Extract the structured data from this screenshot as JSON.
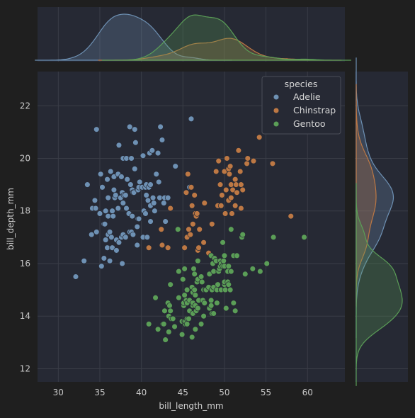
{
  "chart_data": {
    "type": "scatter",
    "subtype": "jointplot",
    "xlabel": "bill_length_mm",
    "ylabel": "bill_depth_mm",
    "xlim": [
      27.5,
      64.5
    ],
    "ylim": [
      11.5,
      23.3
    ],
    "xticks": [
      30,
      35,
      40,
      45,
      50,
      55,
      60
    ],
    "yticks": [
      12,
      14,
      16,
      18,
      20,
      22
    ],
    "grid": true,
    "legend": {
      "title": "species",
      "placement": "top-right"
    },
    "marginals": {
      "top": "kde of bill_length_mm by species",
      "right": "kde of bill_depth_mm by species"
    },
    "series": [
      {
        "name": "Adelie",
        "color": "#6e91b4",
        "points": [
          [
            32.1,
            15.5
          ],
          [
            33.1,
            16.1
          ],
          [
            33.5,
            19.0
          ],
          [
            34.0,
            17.1
          ],
          [
            34.1,
            18.1
          ],
          [
            34.4,
            18.4
          ],
          [
            34.5,
            18.1
          ],
          [
            34.6,
            17.2
          ],
          [
            34.6,
            21.1
          ],
          [
            35.0,
            17.9
          ],
          [
            35.1,
            19.4
          ],
          [
            35.2,
            15.9
          ],
          [
            35.3,
            18.9
          ],
          [
            35.5,
            17.5
          ],
          [
            35.5,
            16.2
          ],
          [
            35.6,
            17.5
          ],
          [
            35.7,
            16.9
          ],
          [
            35.7,
            18.0
          ],
          [
            35.9,
            16.6
          ],
          [
            35.9,
            19.2
          ],
          [
            36.0,
            17.1
          ],
          [
            36.0,
            17.8
          ],
          [
            36.0,
            18.5
          ],
          [
            36.2,
            16.1
          ],
          [
            36.2,
            17.2
          ],
          [
            36.3,
            19.5
          ],
          [
            36.4,
            17.0
          ],
          [
            36.5,
            16.6
          ],
          [
            36.5,
            18.0
          ],
          [
            36.6,
            17.8
          ],
          [
            36.7,
            18.8
          ],
          [
            36.7,
            19.3
          ],
          [
            36.8,
            18.5
          ],
          [
            36.9,
            18.6
          ],
          [
            37.0,
            16.5
          ],
          [
            37.0,
            16.9
          ],
          [
            37.2,
            18.1
          ],
          [
            37.2,
            19.4
          ],
          [
            37.3,
            16.8
          ],
          [
            37.3,
            20.5
          ],
          [
            37.5,
            18.5
          ],
          [
            37.6,
            17.0
          ],
          [
            37.6,
            19.3
          ],
          [
            37.7,
            18.7
          ],
          [
            37.7,
            16.0
          ],
          [
            37.8,
            17.1
          ],
          [
            37.8,
            18.3
          ],
          [
            37.8,
            20.0
          ],
          [
            37.9,
            18.6
          ],
          [
            38.1,
            17.0
          ],
          [
            38.1,
            18.6
          ],
          [
            38.2,
            18.1
          ],
          [
            38.2,
            20.0
          ],
          [
            38.3,
            19.2
          ],
          [
            38.5,
            17.9
          ],
          [
            38.6,
            17.2
          ],
          [
            38.6,
            21.2
          ],
          [
            38.7,
            19.0
          ],
          [
            38.8,
            17.2
          ],
          [
            38.8,
            20.0
          ],
          [
            38.9,
            17.8
          ],
          [
            38.9,
            18.8
          ],
          [
            39.0,
            17.1
          ],
          [
            39.0,
            18.7
          ],
          [
            39.1,
            18.7
          ],
          [
            39.2,
            19.6
          ],
          [
            39.2,
            21.1
          ],
          [
            39.3,
            20.6
          ],
          [
            39.5,
            16.7
          ],
          [
            39.5,
            17.4
          ],
          [
            39.6,
            17.7
          ],
          [
            39.6,
            18.8
          ],
          [
            39.7,
            17.7
          ],
          [
            39.7,
            18.9
          ],
          [
            39.8,
            19.1
          ],
          [
            40.1,
            18.9
          ],
          [
            40.2,
            17.0
          ],
          [
            40.2,
            20.1
          ],
          [
            40.3,
            18.0
          ],
          [
            40.5,
            17.9
          ],
          [
            40.5,
            18.9
          ],
          [
            40.6,
            18.6
          ],
          [
            40.6,
            19.0
          ],
          [
            40.7,
            17.0
          ],
          [
            40.8,
            18.4
          ],
          [
            40.9,
            16.6
          ],
          [
            40.9,
            18.9
          ],
          [
            41.0,
            20.2
          ],
          [
            41.1,
            17.6
          ],
          [
            41.1,
            18.2
          ],
          [
            41.1,
            19.0
          ],
          [
            41.3,
            20.3
          ],
          [
            41.4,
            18.5
          ],
          [
            41.5,
            18.3
          ],
          [
            41.6,
            18.0
          ],
          [
            41.8,
            19.4
          ],
          [
            42.0,
            20.2
          ],
          [
            42.1,
            19.1
          ],
          [
            42.2,
            18.5
          ],
          [
            42.3,
            21.2
          ],
          [
            42.5,
            20.7
          ],
          [
            42.7,
            18.3
          ],
          [
            42.8,
            18.5
          ],
          [
            42.9,
            17.6
          ],
          [
            43.2,
            18.5
          ],
          [
            44.1,
            19.7
          ],
          [
            45.8,
            18.9
          ],
          [
            46.0,
            21.5
          ]
        ]
      },
      {
        "name": "Chinstrap",
        "color": "#bd7844",
        "points": [
          [
            40.9,
            16.6
          ],
          [
            42.4,
            17.3
          ],
          [
            42.5,
            16.7
          ],
          [
            43.2,
            16.6
          ],
          [
            43.5,
            18.1
          ],
          [
            45.2,
            16.6
          ],
          [
            45.4,
            18.7
          ],
          [
            45.5,
            17.0
          ],
          [
            45.6,
            19.4
          ],
          [
            45.7,
            17.3
          ],
          [
            45.9,
            17.1
          ],
          [
            46.0,
            18.9
          ],
          [
            46.1,
            18.2
          ],
          [
            46.2,
            17.5
          ],
          [
            46.4,
            18.6
          ],
          [
            46.5,
            17.9
          ],
          [
            46.6,
            17.8
          ],
          [
            46.7,
            17.9
          ],
          [
            46.8,
            16.5
          ],
          [
            46.9,
            16.6
          ],
          [
            47.0,
            17.3
          ],
          [
            47.5,
            16.8
          ],
          [
            47.6,
            18.3
          ],
          [
            48.1,
            16.4
          ],
          [
            48.5,
            17.5
          ],
          [
            49.0,
            19.5
          ],
          [
            49.2,
            18.2
          ],
          [
            49.3,
            19.9
          ],
          [
            49.5,
            19.0
          ],
          [
            49.6,
            18.2
          ],
          [
            49.7,
            18.6
          ],
          [
            50.0,
            19.5
          ],
          [
            50.1,
            17.9
          ],
          [
            50.2,
            18.8
          ],
          [
            50.3,
            20.0
          ],
          [
            50.5,
            18.4
          ],
          [
            50.5,
            19.6
          ],
          [
            50.6,
            19.4
          ],
          [
            50.7,
            19.7
          ],
          [
            50.8,
            18.5
          ],
          [
            50.8,
            19.0
          ],
          [
            50.9,
            17.9
          ],
          [
            51.0,
            18.8
          ],
          [
            51.3,
            18.2
          ],
          [
            51.3,
            19.2
          ],
          [
            51.4,
            19.0
          ],
          [
            51.5,
            18.7
          ],
          [
            51.7,
            20.3
          ],
          [
            51.9,
            19.5
          ],
          [
            52.0,
            18.1
          ],
          [
            52.0,
            19.0
          ],
          [
            52.2,
            18.8
          ],
          [
            52.7,
            19.8
          ],
          [
            52.8,
            20.0
          ],
          [
            53.5,
            19.9
          ],
          [
            54.2,
            20.8
          ],
          [
            55.8,
            19.8
          ],
          [
            58.0,
            17.8
          ]
        ]
      },
      {
        "name": "Gentoo",
        "color": "#5b9e57",
        "points": [
          [
            40.9,
            13.7
          ],
          [
            41.7,
            14.7
          ],
          [
            42.0,
            13.5
          ],
          [
            42.6,
            13.7
          ],
          [
            42.7,
            13.7
          ],
          [
            42.8,
            14.2
          ],
          [
            42.9,
            13.1
          ],
          [
            43.2,
            14.5
          ],
          [
            43.3,
            14.0
          ],
          [
            43.3,
            13.4
          ],
          [
            43.4,
            14.4
          ],
          [
            43.5,
            14.2
          ],
          [
            43.5,
            15.2
          ],
          [
            43.6,
            13.9
          ],
          [
            43.8,
            13.9
          ],
          [
            44.0,
            13.6
          ],
          [
            44.4,
            17.3
          ],
          [
            44.5,
            14.7
          ],
          [
            44.5,
            15.7
          ],
          [
            44.9,
            13.3
          ],
          [
            44.9,
            13.8
          ],
          [
            45.0,
            15.4
          ],
          [
            45.1,
            14.4
          ],
          [
            45.1,
            14.5
          ],
          [
            45.2,
            13.8
          ],
          [
            45.2,
            14.8
          ],
          [
            45.2,
            15.8
          ],
          [
            45.3,
            13.7
          ],
          [
            45.3,
            13.8
          ],
          [
            45.4,
            14.6
          ],
          [
            45.5,
            13.7
          ],
          [
            45.5,
            13.9
          ],
          [
            45.5,
            14.5
          ],
          [
            45.5,
            15.0
          ],
          [
            45.7,
            13.9
          ],
          [
            45.8,
            14.2
          ],
          [
            45.8,
            14.6
          ],
          [
            46.1,
            13.2
          ],
          [
            46.1,
            15.1
          ],
          [
            46.2,
            14.1
          ],
          [
            46.2,
            14.4
          ],
          [
            46.2,
            14.5
          ],
          [
            46.2,
            14.9
          ],
          [
            46.3,
            15.8
          ],
          [
            46.4,
            15.0
          ],
          [
            46.4,
            15.6
          ],
          [
            46.5,
            13.5
          ],
          [
            46.5,
            14.4
          ],
          [
            46.5,
            14.8
          ],
          [
            46.6,
            14.2
          ],
          [
            46.7,
            15.3
          ],
          [
            46.8,
            14.3
          ],
          [
            46.8,
            15.4
          ],
          [
            46.8,
            16.1
          ],
          [
            46.9,
            14.6
          ],
          [
            47.2,
            13.7
          ],
          [
            47.2,
            15.5
          ],
          [
            47.3,
            15.3
          ],
          [
            47.4,
            14.6
          ],
          [
            47.5,
            14.0
          ],
          [
            47.5,
            15.0
          ],
          [
            47.6,
            14.5
          ],
          [
            47.7,
            15.0
          ],
          [
            47.8,
            15.0
          ],
          [
            48.1,
            15.1
          ],
          [
            48.2,
            14.3
          ],
          [
            48.2,
            15.6
          ],
          [
            48.4,
            14.4
          ],
          [
            48.4,
            14.6
          ],
          [
            48.4,
            16.3
          ],
          [
            48.5,
            14.1
          ],
          [
            48.5,
            15.0
          ],
          [
            48.6,
            16.0
          ],
          [
            48.7,
            14.1
          ],
          [
            48.7,
            15.1
          ],
          [
            48.7,
            15.7
          ],
          [
            48.8,
            16.2
          ],
          [
            49.0,
            16.1
          ],
          [
            49.1,
            14.5
          ],
          [
            49.1,
            15.0
          ],
          [
            49.2,
            15.2
          ],
          [
            49.3,
            15.7
          ],
          [
            49.4,
            15.8
          ],
          [
            49.5,
            15.9
          ],
          [
            49.5,
            16.1
          ],
          [
            49.6,
            15.0
          ],
          [
            49.6,
            16.0
          ],
          [
            49.8,
            15.9
          ],
          [
            49.8,
            16.8
          ],
          [
            49.9,
            16.1
          ],
          [
            50.0,
            15.2
          ],
          [
            50.0,
            15.3
          ],
          [
            50.0,
            15.9
          ],
          [
            50.0,
            16.3
          ],
          [
            50.1,
            15.0
          ],
          [
            50.2,
            14.3
          ],
          [
            50.4,
            15.3
          ],
          [
            50.4,
            15.7
          ],
          [
            50.5,
            15.2
          ],
          [
            50.5,
            15.9
          ],
          [
            50.7,
            15.0
          ],
          [
            50.8,
            15.7
          ],
          [
            50.8,
            17.3
          ],
          [
            51.1,
            14.5
          ],
          [
            51.1,
            16.3
          ],
          [
            51.3,
            14.2
          ],
          [
            51.5,
            16.3
          ],
          [
            52.1,
            17.0
          ],
          [
            52.2,
            17.1
          ],
          [
            52.5,
            15.6
          ],
          [
            53.4,
            15.8
          ],
          [
            54.3,
            15.7
          ],
          [
            55.1,
            16.0
          ],
          [
            55.9,
            17.0
          ],
          [
            59.6,
            17.0
          ]
        ]
      }
    ]
  }
}
